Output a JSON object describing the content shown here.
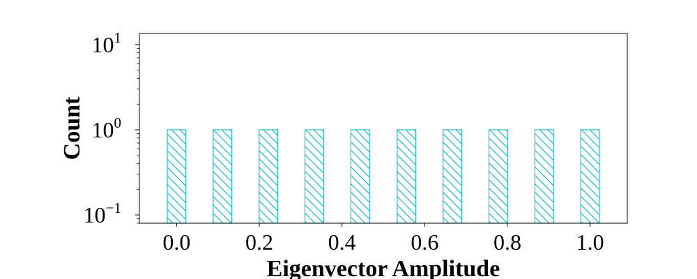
{
  "chart_data": {
    "type": "bar",
    "x": [
      0.0,
      0.111,
      0.222,
      0.333,
      0.444,
      0.556,
      0.667,
      0.778,
      0.889,
      1.0
    ],
    "values": [
      1,
      1,
      1,
      1,
      1,
      1,
      1,
      1,
      1,
      1
    ],
    "bar_width": 0.045,
    "xlim": [
      -0.09,
      1.09
    ],
    "ylim": [
      0.08,
      13.5
    ],
    "yscale": "log",
    "xticks": [
      {
        "value": 0.0,
        "label": "0.0"
      },
      {
        "value": 0.2,
        "label": "0.2"
      },
      {
        "value": 0.4,
        "label": "0.4"
      },
      {
        "value": 0.6,
        "label": "0.6"
      },
      {
        "value": 0.8,
        "label": "0.8"
      },
      {
        "value": 1.0,
        "label": "1.0"
      }
    ],
    "yticks": [
      {
        "value": 0.1,
        "base": "10",
        "exponent": "−1"
      },
      {
        "value": 1,
        "base": "10",
        "exponent": "0"
      },
      {
        "value": 10,
        "base": "10",
        "exponent": "1"
      }
    ],
    "xlabel": "Eigenvector Amplitude",
    "ylabel": "Count",
    "bar_color": "#17becf",
    "hatch": "\\\\",
    "grid": false
  }
}
